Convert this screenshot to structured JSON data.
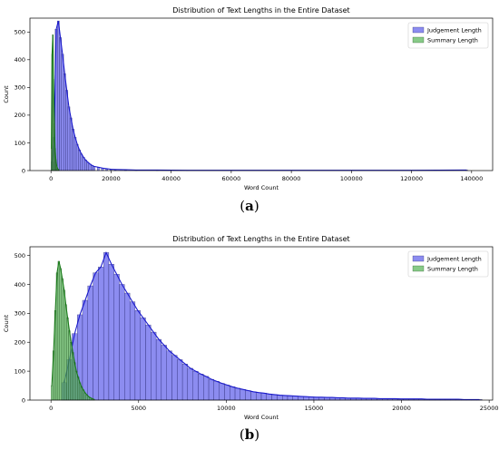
{
  "panels": [
    {
      "caption_open": "(",
      "caption_letter": "a",
      "caption_close": ")"
    },
    {
      "caption_open": "(",
      "caption_letter": "b",
      "caption_close": ")"
    }
  ],
  "colors": {
    "judgement": "#5b5bea",
    "judgement_line": "#1a1acc",
    "summary": "#55b455",
    "summary_line": "#1a7a1a"
  },
  "chart_data": [
    {
      "type": "bar",
      "title": "Distribution of Text Lengths in the Entire Dataset",
      "xlabel": "Word Count",
      "ylabel": "Count",
      "xlim": [
        -7000,
        147000
      ],
      "ylim": [
        0,
        550
      ],
      "xticks": [
        0,
        20000,
        40000,
        60000,
        80000,
        100000,
        120000,
        140000
      ],
      "xtick_labels": [
        "0",
        "20000",
        "40000",
        "60000",
        "80000",
        "100000",
        "120000",
        "140000"
      ],
      "yticks": [
        0,
        100,
        200,
        300,
        400,
        500
      ],
      "ytick_labels": [
        "0",
        "100",
        "200",
        "300",
        "400",
        "500"
      ],
      "legend": "top-right",
      "series": [
        {
          "name": "Judgement Length",
          "bin_width": 700,
          "bins_x": [
            0,
            700,
            1400,
            2100,
            2800,
            3500,
            4200,
            4900,
            5600,
            6300,
            7000,
            7700,
            8400,
            9100,
            9800,
            10500,
            11200,
            11900,
            12600,
            13300,
            14000,
            15400,
            16800,
            18200,
            19600,
            21000,
            24500,
            28000,
            35000,
            45000,
            60000,
            80000,
            100000,
            120000,
            138000
          ],
          "counts": [
            30,
            120,
            510,
            540,
            480,
            420,
            350,
            290,
            230,
            190,
            150,
            120,
            95,
            75,
            60,
            48,
            38,
            30,
            24,
            19,
            15,
            12,
            9,
            7,
            5,
            4,
            3,
            2,
            2,
            1,
            1,
            1,
            1,
            1,
            2
          ]
        },
        {
          "name": "Summary Length",
          "bin_width": 250,
          "bins_x": [
            0,
            250,
            500,
            750,
            1000,
            1250,
            1500,
            1750,
            2000,
            2250,
            2500
          ],
          "counts": [
            80,
            420,
            490,
            330,
            170,
            80,
            40,
            20,
            10,
            5,
            2
          ]
        }
      ]
    },
    {
      "type": "bar",
      "title": "Distribution of Text Lengths in the Entire Dataset",
      "xlabel": "Word Count",
      "ylabel": "Count",
      "xlim": [
        -1200,
        25200
      ],
      "ylim": [
        0,
        530
      ],
      "xticks": [
        0,
        5000,
        10000,
        15000,
        20000,
        25000
      ],
      "xtick_labels": [
        "0",
        "5000",
        "10000",
        "15000",
        "20000",
        "25000"
      ],
      "yticks": [
        0,
        100,
        200,
        300,
        400,
        500
      ],
      "ytick_labels": [
        "0",
        "100",
        "200",
        "300",
        "400",
        "500"
      ],
      "legend": "top-right",
      "series": [
        {
          "name": "Judgement Length",
          "bin_width": 300,
          "bin_start": 600,
          "counts": [
            60,
            140,
            230,
            295,
            345,
            395,
            440,
            460,
            510,
            470,
            435,
            400,
            370,
            340,
            310,
            285,
            260,
            235,
            210,
            190,
            170,
            155,
            140,
            125,
            110,
            100,
            90,
            82,
            72,
            65,
            58,
            52,
            46,
            41,
            37,
            33,
            29,
            26,
            24,
            21,
            19,
            17,
            16,
            15,
            14,
            13,
            12,
            11,
            10,
            10,
            9,
            9,
            8,
            8,
            7,
            7,
            7,
            6,
            6,
            6,
            5,
            5,
            5,
            5,
            4,
            4,
            4,
            4,
            4,
            3,
            3,
            3,
            3,
            3,
            3,
            3,
            2,
            2,
            2,
            2
          ]
        },
        {
          "name": "Summary Length",
          "bin_width": 100,
          "bin_start": 0,
          "counts": [
            50,
            170,
            310,
            440,
            480,
            455,
            420,
            380,
            330,
            285,
            240,
            200,
            165,
            130,
            100,
            80,
            60,
            45,
            35,
            25,
            18,
            12,
            8,
            5,
            3
          ]
        }
      ]
    }
  ]
}
